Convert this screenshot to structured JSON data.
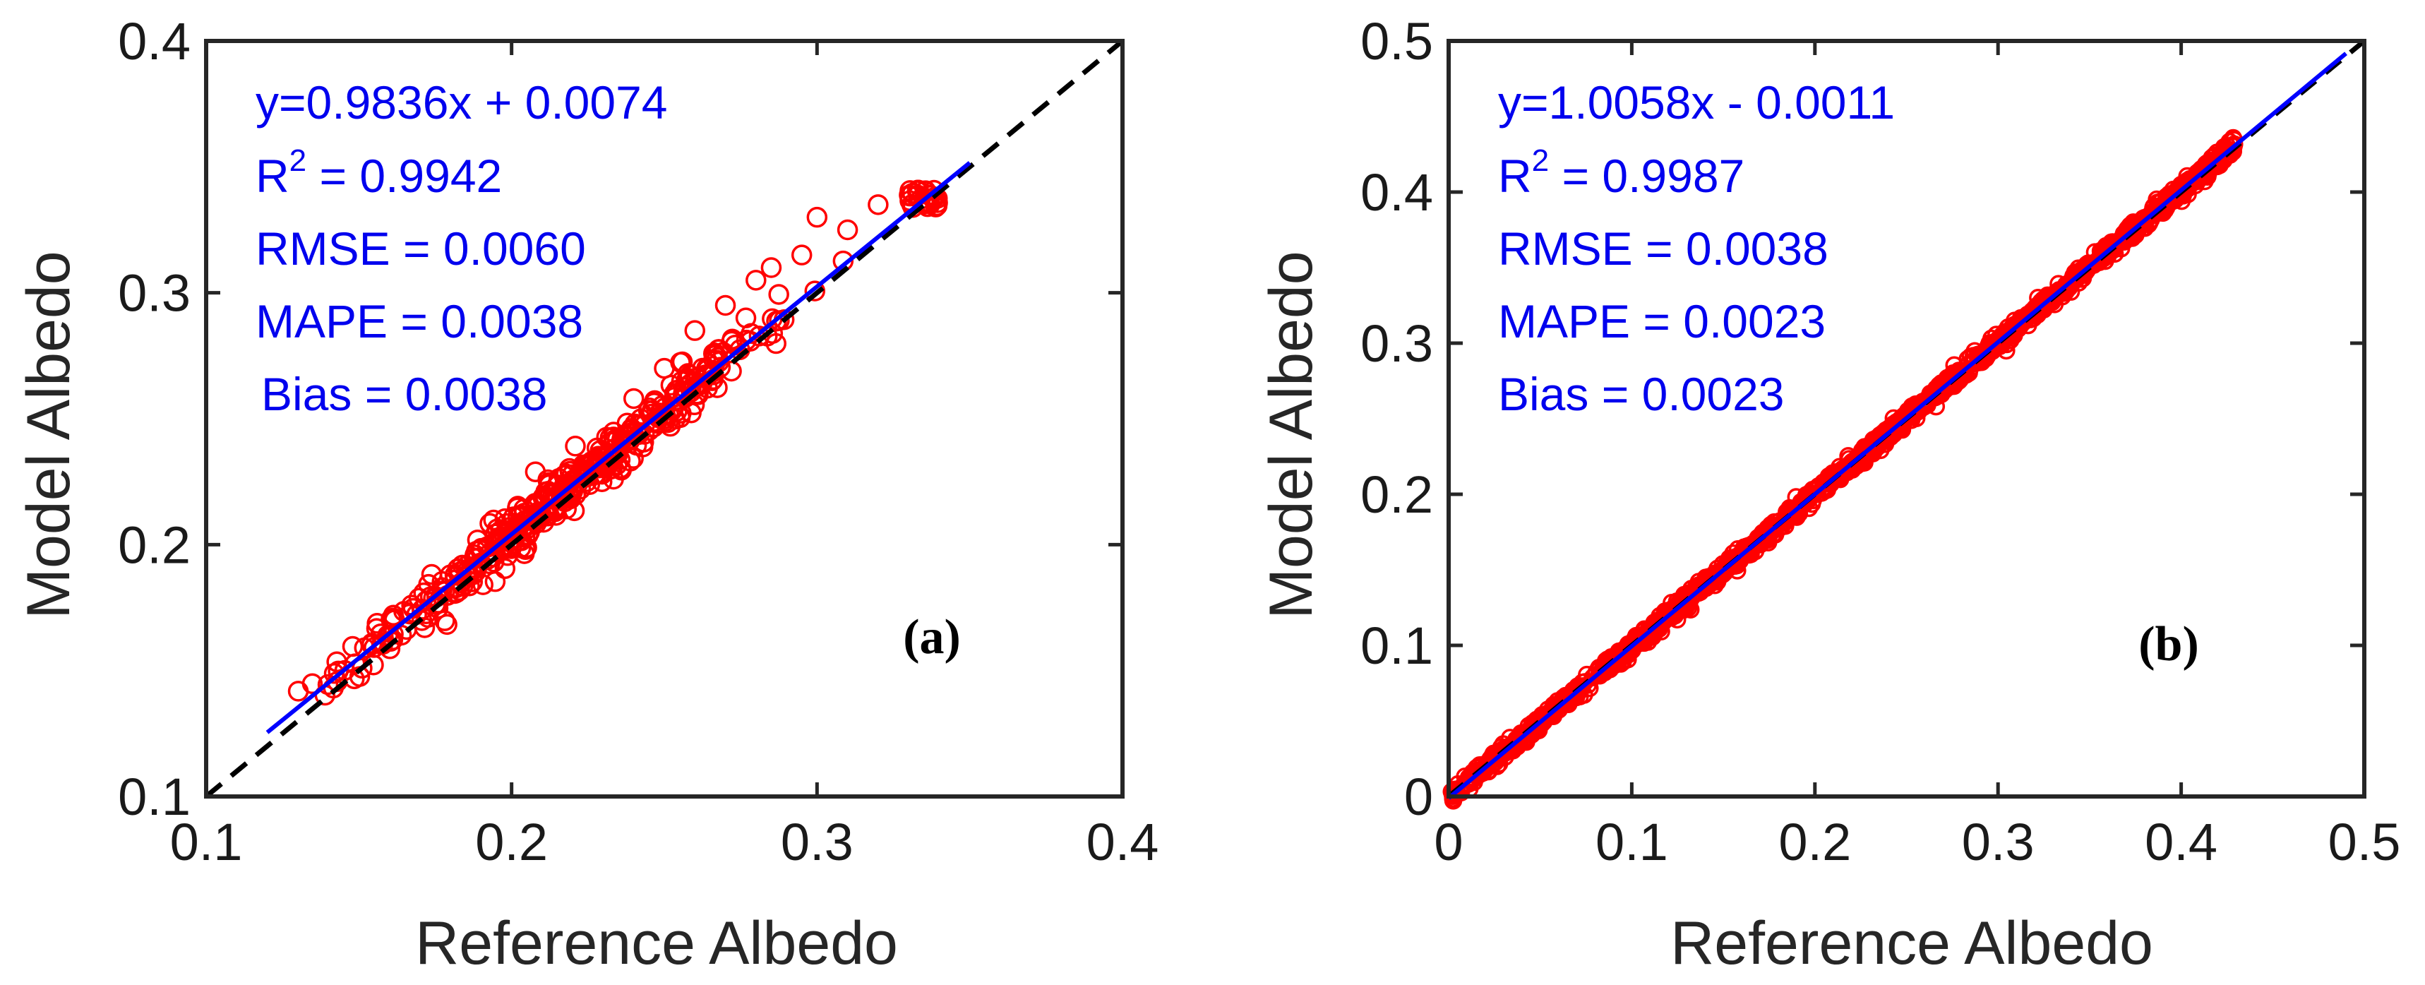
{
  "figure": {
    "colors": {
      "marker": "#ff0000",
      "fit_line": "#0000ff",
      "reference_line": "#000000",
      "annotation": "#0000ee"
    }
  },
  "chart_data": [
    {
      "type": "scatter",
      "panel_label": "(a)",
      "xlabel": "Reference Albedo",
      "ylabel": "Model Albedo",
      "xlim": [
        0.1,
        0.4
      ],
      "ylim": [
        0.1,
        0.4
      ],
      "xticks": [
        0.1,
        0.2,
        0.3,
        0.4
      ],
      "yticks": [
        0.1,
        0.2,
        0.3,
        0.4
      ],
      "xtick_labels": [
        "0.1",
        "0.2",
        "0.3",
        "0.4"
      ],
      "ytick_labels": [
        "0.1",
        "0.2",
        "0.3",
        "0.4"
      ],
      "fit": {
        "slope": 0.9836,
        "intercept": 0.0074,
        "x_range": [
          0.12,
          0.35
        ]
      },
      "reference_line": "1:1 dashed",
      "stats": {
        "equation": "y=0.9836x + 0.0074",
        "r2_prefix": "R",
        "r2_sup": "2",
        "r2_value": " = 0.9942",
        "rmse": "RMSE = 0.0060",
        "mape": "MAPE = 0.0038",
        "bias": "Bias = 0.0038"
      },
      "points_summary": {
        "x_range": [
          0.13,
          0.34
        ],
        "description": "dense cloud of open circles along fit line",
        "outliers": [
          [
            0.3,
            0.33
          ],
          [
            0.31,
            0.325
          ],
          [
            0.32,
            0.335
          ],
          [
            0.295,
            0.315
          ],
          [
            0.285,
            0.31
          ],
          [
            0.28,
            0.305
          ],
          [
            0.27,
            0.295
          ],
          [
            0.26,
            0.285
          ],
          [
            0.25,
            0.27
          ],
          [
            0.24,
            0.258
          ]
        ]
      }
    },
    {
      "type": "scatter",
      "panel_label": "(b)",
      "xlabel": "Reference Albedo",
      "ylabel": "Model Albedo",
      "xlim": [
        0,
        0.5
      ],
      "ylim": [
        0,
        0.5
      ],
      "xticks": [
        0,
        0.1,
        0.2,
        0.3,
        0.4,
        0.5
      ],
      "yticks": [
        0,
        0.1,
        0.2,
        0.3,
        0.4,
        0.5
      ],
      "xtick_labels": [
        "0",
        "0.1",
        "0.2",
        "0.3",
        "0.4",
        "0.5"
      ],
      "ytick_labels": [
        "0",
        "0.1",
        "0.2",
        "0.3",
        "0.4",
        "0.5"
      ],
      "fit": {
        "slope": 1.0058,
        "intercept": -0.0011,
        "x_range": [
          0.0,
          0.49
        ]
      },
      "reference_line": "1:1 dashed",
      "stats": {
        "equation": "y=1.0058x - 0.0011",
        "r2_prefix": "R",
        "r2_sup": "2",
        "r2_value": " = 0.9987",
        "rmse": "RMSE = 0.0038",
        "mape": "MAPE = 0.0023",
        "bias": "Bias = 0.0023"
      },
      "points_summary": {
        "x_range": [
          0.0,
          0.43
        ],
        "description": "very dense band of open circles along fit line"
      }
    }
  ]
}
